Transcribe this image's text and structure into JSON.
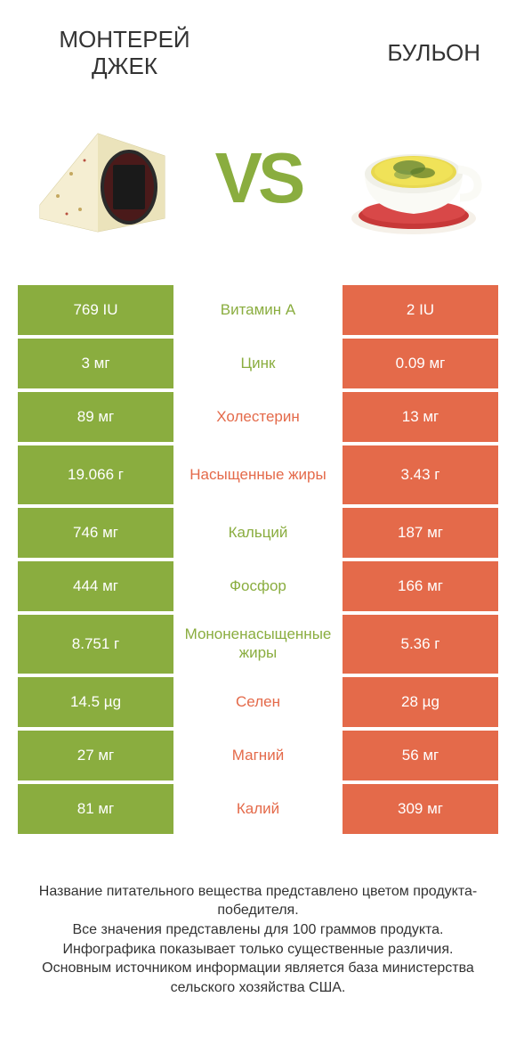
{
  "colors": {
    "green": "#8aad3f",
    "orange": "#e46a4a",
    "text": "#333333"
  },
  "titles": {
    "left": "МОНТЕРЕЙ ДЖЕК",
    "right": "БУЛЬОН",
    "vs": "VS"
  },
  "rows": [
    {
      "label": "Витамин A",
      "left": "769 IU",
      "right": "2 IU",
      "winner": "left",
      "tall": false
    },
    {
      "label": "Цинк",
      "left": "3 мг",
      "right": "0.09 мг",
      "winner": "left",
      "tall": false
    },
    {
      "label": "Холестерин",
      "left": "89 мг",
      "right": "13 мг",
      "winner": "right",
      "tall": false
    },
    {
      "label": "Насыщенные жиры",
      "left": "19.066 г",
      "right": "3.43 г",
      "winner": "right",
      "tall": true
    },
    {
      "label": "Кальций",
      "left": "746 мг",
      "right": "187 мг",
      "winner": "left",
      "tall": false
    },
    {
      "label": "Фосфор",
      "left": "444 мг",
      "right": "166 мг",
      "winner": "left",
      "tall": false
    },
    {
      "label": "Мононенасыщенные жиры",
      "left": "8.751 г",
      "right": "5.36 г",
      "winner": "left",
      "tall": true
    },
    {
      "label": "Селен",
      "left": "14.5 µg",
      "right": "28 µg",
      "winner": "right",
      "tall": false
    },
    {
      "label": "Магний",
      "left": "27 мг",
      "right": "56 мг",
      "winner": "right",
      "tall": false
    },
    {
      "label": "Калий",
      "left": "81 мг",
      "right": "309 мг",
      "winner": "right",
      "tall": false
    }
  ],
  "footer": {
    "l1": "Название питательного вещества представлено цветом продукта-победителя.",
    "l2": "Все значения представлены для 100 граммов продукта.",
    "l3": "Инфографика показывает только существенные различия.",
    "l4": "Основным источником информации является база министерства сельского хозяйства США."
  }
}
